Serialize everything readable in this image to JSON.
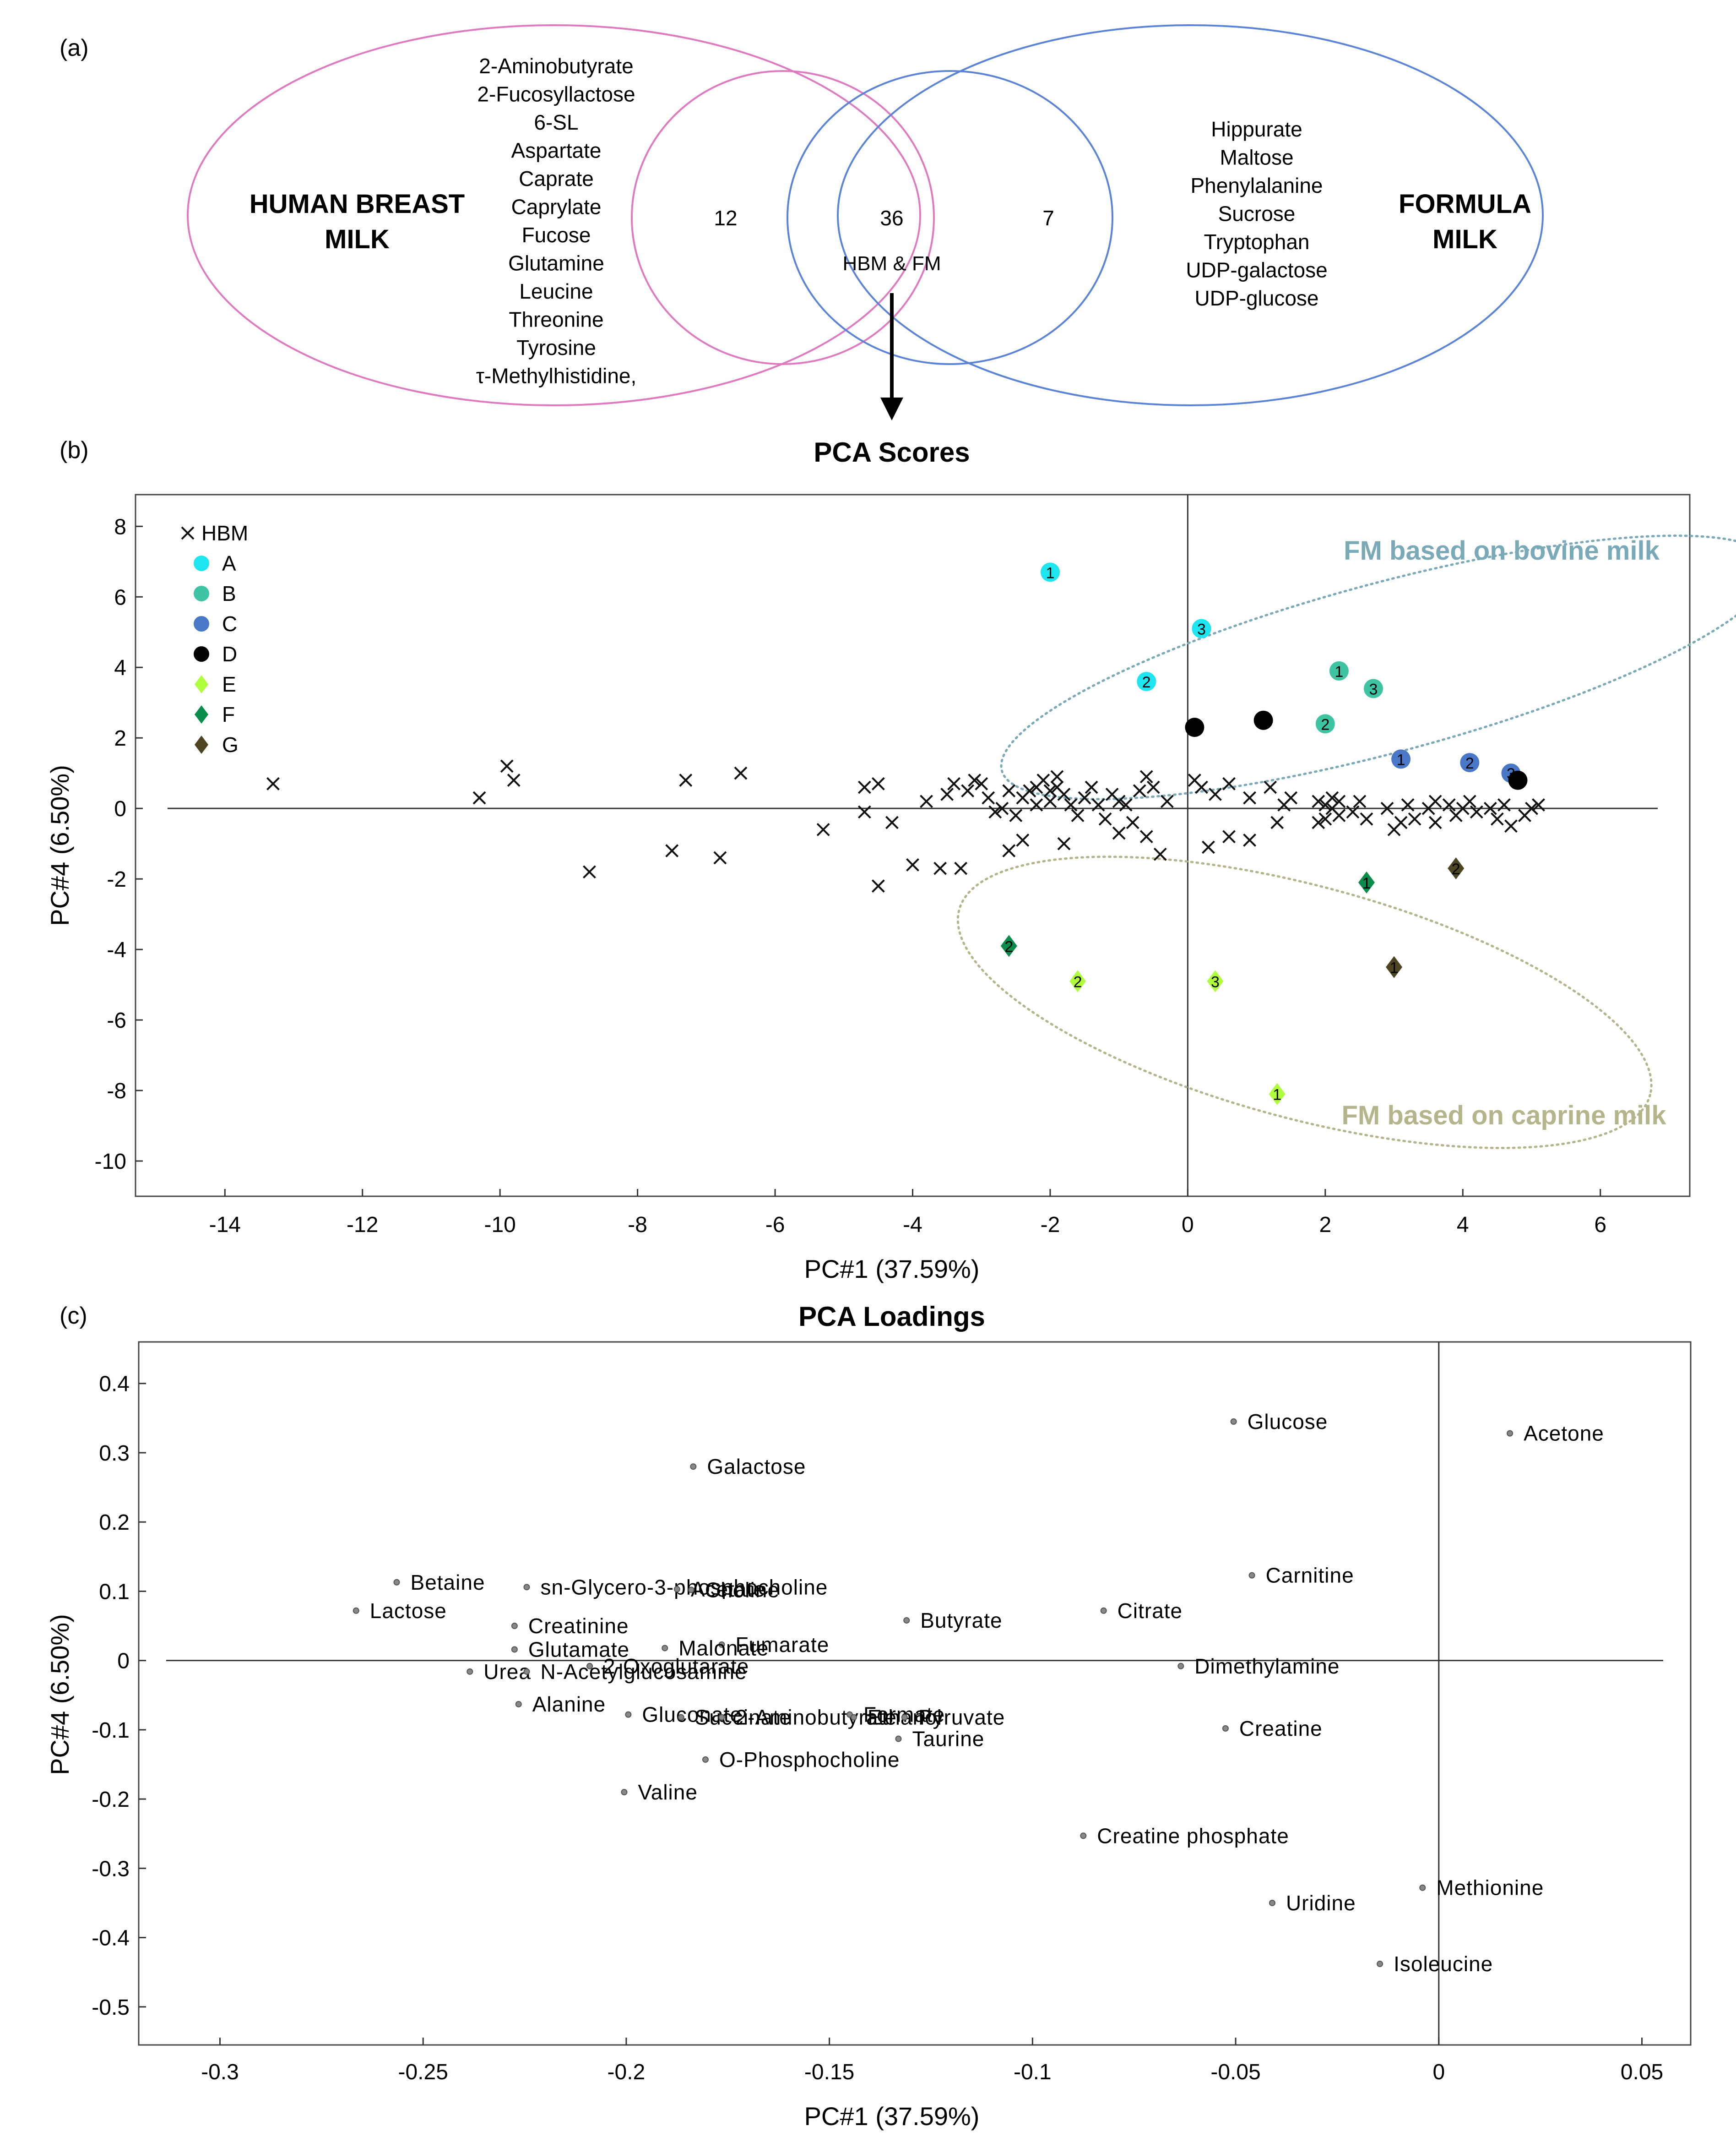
{
  "colors": {
    "hbm_ellipse": "#e07ac0",
    "fm_ellipse": "#5b84d8",
    "bovine": "#7aa9b8",
    "caprine": "#b5b58c",
    "A": "#1ee6f0",
    "B": "#3ec4a2",
    "C": "#4a78c8",
    "D": "#000000",
    "E": "#b0ff3c",
    "F": "#0a8c4a",
    "G": "#4d4422"
  },
  "panel_a": {
    "label": "(a)",
    "hbm_title_1": "HUMAN BREAST",
    "hbm_title_2": "MILK",
    "fm_title_1": "FORMULA",
    "fm_title_2": "MILK",
    "hbm_only": [
      "2-Aminobutyrate",
      "2-Fucosyllactose",
      "6-SL",
      "Aspartate",
      "Caprate",
      "Caprylate",
      "Fucose",
      "Glutamine",
      "Leucine",
      "Threonine",
      "Tyrosine",
      "τ-Methylhistidine,"
    ],
    "fm_only": [
      "Hippurate",
      "Maltose",
      "Phenylalanine",
      "Sucrose",
      "Tryptophan",
      "UDP-galactose",
      "UDP-glucose"
    ],
    "count_hbm": "12",
    "count_shared": "36",
    "count_fm": "7",
    "shared_label": "HBM & FM"
  },
  "chart_data": [
    {
      "type": "scatter",
      "panel_label": "(b)",
      "title": "PCA Scores",
      "xlabel": "PC#1 (37.59%)",
      "ylabel": "PC#4 (6.50%)",
      "xlim": [
        -15.3,
        7.3
      ],
      "ylim": [
        -11.0,
        8.9
      ],
      "xticks": [
        -14,
        -12,
        -10,
        -8,
        -6,
        -4,
        -2,
        0,
        2,
        4,
        6
      ],
      "yticks": [
        -10,
        -8,
        -6,
        -4,
        -2,
        0,
        2,
        4,
        6,
        8
      ],
      "legend": [
        {
          "key": "HBM",
          "label": "HBM",
          "marker": "x"
        },
        {
          "key": "A",
          "label": "A",
          "marker": "circle"
        },
        {
          "key": "B",
          "label": "B",
          "marker": "circle"
        },
        {
          "key": "C",
          "label": "C",
          "marker": "circle"
        },
        {
          "key": "D",
          "label": "D",
          "marker": "circle"
        },
        {
          "key": "E",
          "label": "E",
          "marker": "diamond"
        },
        {
          "key": "F",
          "label": "F",
          "marker": "diamond"
        },
        {
          "key": "G",
          "label": "G",
          "marker": "diamond"
        }
      ],
      "annotations": [
        "FM based on bovine milk",
        "FM based on caprine milk"
      ],
      "ellipses": [
        {
          "name": "FM based on bovine milk",
          "center": [
            2.9,
            4.0
          ],
          "semi_axes": [
            5.8,
            2.4
          ],
          "angle_deg": -15
        },
        {
          "name": "FM based on caprine milk",
          "center": [
            1.7,
            -5.5
          ],
          "semi_axes": [
            5.2,
            3.3
          ],
          "angle_deg": 15
        }
      ],
      "hbm_points": [
        [
          -13.3,
          0.7
        ],
        [
          -10.3,
          0.3
        ],
        [
          -9.9,
          1.2
        ],
        [
          -9.8,
          0.8
        ],
        [
          -8.7,
          -1.8
        ],
        [
          -7.5,
          -1.2
        ],
        [
          -7.3,
          0.8
        ],
        [
          -6.8,
          -1.4
        ],
        [
          -6.5,
          1.0
        ],
        [
          -5.3,
          -0.6
        ],
        [
          -4.7,
          0.6
        ],
        [
          -4.7,
          -0.1
        ],
        [
          -4.5,
          0.7
        ],
        [
          -4.5,
          -2.2
        ],
        [
          -4.3,
          -0.4
        ],
        [
          -4.0,
          -1.6
        ],
        [
          -3.8,
          0.2
        ],
        [
          -3.6,
          -1.7
        ],
        [
          -3.5,
          0.4
        ],
        [
          -3.4,
          0.7
        ],
        [
          -3.3,
          -1.7
        ],
        [
          -3.2,
          0.5
        ],
        [
          -3.1,
          0.8
        ],
        [
          -3.0,
          0.7
        ],
        [
          -2.9,
          0.3
        ],
        [
          -2.8,
          -0.1
        ],
        [
          -2.7,
          0.0
        ],
        [
          -2.6,
          -1.2
        ],
        [
          -2.6,
          0.5
        ],
        [
          -2.5,
          -0.2
        ],
        [
          -2.4,
          0.3
        ],
        [
          -2.4,
          -0.9
        ],
        [
          -2.3,
          0.5
        ],
        [
          -2.2,
          0.6
        ],
        [
          -2.2,
          0.1
        ],
        [
          -2.1,
          0.8
        ],
        [
          -2.0,
          0.5
        ],
        [
          -2.0,
          0.2
        ],
        [
          -1.9,
          0.9
        ],
        [
          -1.9,
          0.6
        ],
        [
          -1.8,
          0.4
        ],
        [
          -1.8,
          -1.0
        ],
        [
          -1.7,
          0.1
        ],
        [
          -1.6,
          -0.2
        ],
        [
          -1.5,
          0.3
        ],
        [
          -1.4,
          0.6
        ],
        [
          -1.3,
          0.1
        ],
        [
          -1.2,
          -0.3
        ],
        [
          -1.1,
          0.4
        ],
        [
          -1.0,
          -0.7
        ],
        [
          -1.0,
          0.2
        ],
        [
          -0.9,
          0.1
        ],
        [
          -0.8,
          -0.4
        ],
        [
          -0.7,
          0.5
        ],
        [
          -0.6,
          0.9
        ],
        [
          -0.6,
          -0.8
        ],
        [
          -0.5,
          0.6
        ],
        [
          -0.4,
          -1.3
        ],
        [
          -0.3,
          0.2
        ],
        [
          0.1,
          0.8
        ],
        [
          0.2,
          0.6
        ],
        [
          0.3,
          -1.1
        ],
        [
          0.4,
          0.4
        ],
        [
          0.6,
          0.7
        ],
        [
          0.6,
          -0.8
        ],
        [
          0.9,
          -0.9
        ],
        [
          0.9,
          0.3
        ],
        [
          1.2,
          0.6
        ],
        [
          1.3,
          -0.4
        ],
        [
          1.4,
          0.1
        ],
        [
          1.5,
          0.3
        ],
        [
          1.9,
          0.2
        ],
        [
          1.9,
          -0.4
        ],
        [
          2.0,
          0.1
        ],
        [
          2.0,
          -0.3
        ],
        [
          2.1,
          0.3
        ],
        [
          2.1,
          0.0
        ],
        [
          2.2,
          -0.2
        ],
        [
          2.2,
          0.2
        ],
        [
          2.4,
          -0.1
        ],
        [
          2.5,
          0.2
        ],
        [
          2.6,
          -0.3
        ],
        [
          2.9,
          0.0
        ],
        [
          3.0,
          -0.6
        ],
        [
          3.1,
          -0.4
        ],
        [
          3.2,
          0.1
        ],
        [
          3.3,
          -0.3
        ],
        [
          3.5,
          0.0
        ],
        [
          3.6,
          0.2
        ],
        [
          3.6,
          -0.4
        ],
        [
          3.8,
          0.1
        ],
        [
          3.9,
          -0.2
        ],
        [
          4.0,
          0.0
        ],
        [
          4.1,
          0.2
        ],
        [
          4.2,
          -0.1
        ],
        [
          4.4,
          0.0
        ],
        [
          4.5,
          -0.3
        ],
        [
          4.6,
          0.1
        ],
        [
          4.7,
          -0.5
        ],
        [
          4.9,
          -0.2
        ],
        [
          5.0,
          0.0
        ],
        [
          5.1,
          0.1
        ]
      ],
      "series": [
        {
          "name": "A",
          "marker": "circle",
          "points": [
            {
              "x": -2.0,
              "y": 6.7,
              "label": "1"
            },
            {
              "x": -0.6,
              "y": 3.6,
              "label": "2"
            },
            {
              "x": 0.2,
              "y": 5.1,
              "label": "3"
            }
          ]
        },
        {
          "name": "B",
          "marker": "circle",
          "points": [
            {
              "x": 2.2,
              "y": 3.9,
              "label": "1"
            },
            {
              "x": 2.0,
              "y": 2.4,
              "label": "2"
            },
            {
              "x": 2.7,
              "y": 3.4,
              "label": "3"
            }
          ]
        },
        {
          "name": "C",
          "marker": "circle",
          "points": [
            {
              "x": 3.1,
              "y": 1.4,
              "label": "1"
            },
            {
              "x": 4.1,
              "y": 1.3,
              "label": "2"
            },
            {
              "x": 4.7,
              "y": 1.0,
              "label": "3"
            }
          ]
        },
        {
          "name": "D",
          "marker": "circle",
          "points": [
            {
              "x": 0.1,
              "y": 2.3,
              "label": "1"
            },
            {
              "x": 1.1,
              "y": 2.5,
              "label": "2"
            },
            {
              "x": 4.8,
              "y": 0.8,
              "label": "3"
            }
          ]
        },
        {
          "name": "E",
          "marker": "diamond",
          "points": [
            {
              "x": 1.3,
              "y": -8.1,
              "label": "1"
            },
            {
              "x": -1.6,
              "y": -4.9,
              "label": "2"
            },
            {
              "x": 0.4,
              "y": -4.9,
              "label": "3"
            }
          ]
        },
        {
          "name": "F",
          "marker": "diamond",
          "points": [
            {
              "x": 2.6,
              "y": -2.1,
              "label": "1"
            },
            {
              "x": -2.6,
              "y": -3.9,
              "label": "2"
            }
          ]
        },
        {
          "name": "G",
          "marker": "diamond",
          "points": [
            {
              "x": 3.0,
              "y": -4.5,
              "label": "1"
            },
            {
              "x": 3.9,
              "y": -1.7,
              "label": "2"
            }
          ]
        }
      ]
    },
    {
      "type": "scatter",
      "panel_label": "(c)",
      "title": "PCA Loadings",
      "xlabel": "PC#1 (37.59%)",
      "ylabel": "PC#4 (6.50%)",
      "xlim": [
        -0.32,
        0.062
      ],
      "ylim": [
        -0.555,
        0.46
      ],
      "xticks": [
        -0.3,
        -0.25,
        -0.2,
        -0.15,
        -0.1,
        -0.05,
        0,
        0.05
      ],
      "yticks": [
        0.4,
        0.3,
        0.2,
        0.1,
        0,
        -0.1,
        -0.2,
        -0.3,
        -0.4,
        -0.5
      ],
      "points": [
        {
          "name": "Glucose",
          "x": -0.0505,
          "y": 0.345
        },
        {
          "name": "Acetone",
          "x": 0.0175,
          "y": 0.328
        },
        {
          "name": "Galactose",
          "x": -0.1835,
          "y": 0.28
        },
        {
          "name": "Carnitine",
          "x": -0.046,
          "y": 0.123
        },
        {
          "name": "Betaine",
          "x": -0.2565,
          "y": 0.113
        },
        {
          "name": "sn-Glycero-3-phosphocholine",
          "x": -0.2245,
          "y": 0.106
        },
        {
          "name": "Acetate",
          "x": -0.1875,
          "y": 0.103
        },
        {
          "name": "Choline",
          "x": -0.184,
          "y": 0.102
        },
        {
          "name": "Lactose",
          "x": -0.2665,
          "y": 0.072
        },
        {
          "name": "Citrate",
          "x": -0.0825,
          "y": 0.072
        },
        {
          "name": "Butyrate",
          "x": -0.131,
          "y": 0.058
        },
        {
          "name": "Creatinine",
          "x": -0.2275,
          "y": 0.05
        },
        {
          "name": "Fumarate",
          "x": -0.1765,
          "y": 0.023
        },
        {
          "name": "Malonate",
          "x": -0.1905,
          "y": 0.018
        },
        {
          "name": "Glutamate",
          "x": -0.2275,
          "y": 0.016
        },
        {
          "name": "Dimethylamine",
          "x": -0.0635,
          "y": -0.008
        },
        {
          "name": "2-Oxoglutarate",
          "x": -0.209,
          "y": -0.008
        },
        {
          "name": "Urea",
          "x": -0.2385,
          "y": -0.016
        },
        {
          "name": "N-Acetylglucosamine",
          "x": -0.2245,
          "y": -0.016
        },
        {
          "name": "Alanine",
          "x": -0.2265,
          "y": -0.063
        },
        {
          "name": "Gluconate",
          "x": -0.1995,
          "y": -0.078
        },
        {
          "name": "Succinate",
          "x": -0.1865,
          "y": -0.082
        },
        {
          "name": "2-Aminobutyrate",
          "x": -0.1765,
          "y": -0.082
        },
        {
          "name": "Formate",
          "x": -0.145,
          "y": -0.078
        },
        {
          "name": "Ethanol",
          "x": -0.144,
          "y": -0.082
        },
        {
          "name": "Pyruvate",
          "x": -0.1315,
          "y": -0.082
        },
        {
          "name": "Taurine",
          "x": -0.133,
          "y": -0.113
        },
        {
          "name": "Creatine",
          "x": -0.0525,
          "y": -0.098
        },
        {
          "name": "O-Phosphocholine",
          "x": -0.1805,
          "y": -0.143
        },
        {
          "name": "Valine",
          "x": -0.2005,
          "y": -0.19
        },
        {
          "name": "Creatine phosphate",
          "x": -0.0875,
          "y": -0.253
        },
        {
          "name": "Methionine",
          "x": -0.004,
          "y": -0.328
        },
        {
          "name": "Uridine",
          "x": -0.041,
          "y": -0.35
        },
        {
          "name": "Isoleucine",
          "x": -0.0145,
          "y": -0.438
        }
      ]
    }
  ]
}
